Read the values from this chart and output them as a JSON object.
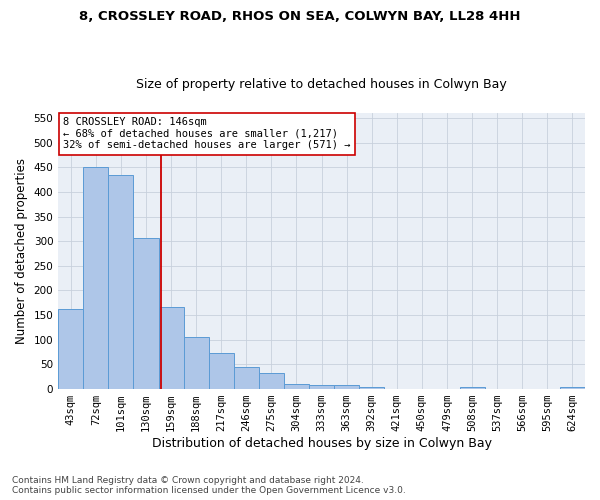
{
  "title1": "8, CROSSLEY ROAD, RHOS ON SEA, COLWYN BAY, LL28 4HH",
  "title2": "Size of property relative to detached houses in Colwyn Bay",
  "xlabel": "Distribution of detached houses by size in Colwyn Bay",
  "ylabel": "Number of detached properties",
  "bar_labels": [
    "43sqm",
    "72sqm",
    "101sqm",
    "130sqm",
    "159sqm",
    "188sqm",
    "217sqm",
    "246sqm",
    "275sqm",
    "304sqm",
    "333sqm",
    "363sqm",
    "392sqm",
    "421sqm",
    "450sqm",
    "479sqm",
    "508sqm",
    "537sqm",
    "566sqm",
    "595sqm",
    "624sqm"
  ],
  "bar_heights": [
    163,
    450,
    435,
    307,
    167,
    106,
    74,
    44,
    32,
    10,
    8,
    8,
    5,
    0,
    0,
    0,
    5,
    0,
    0,
    0,
    5
  ],
  "bar_color": "#aec6e8",
  "bar_edge_color": "#5b9bd5",
  "vline_x": 3.58,
  "vline_color": "#cc0000",
  "annotation_line1": "8 CROSSLEY ROAD: 146sqm",
  "annotation_line2": "← 68% of detached houses are smaller (1,217)",
  "annotation_line3": "32% of semi-detached houses are larger (571) →",
  "annotation_box_color": "#ffffff",
  "annotation_box_edge": "#cc0000",
  "ylim": [
    0,
    560
  ],
  "yticks": [
    0,
    50,
    100,
    150,
    200,
    250,
    300,
    350,
    400,
    450,
    500,
    550
  ],
  "grid_color": "#c8d0dc",
  "bg_color": "#eaeff6",
  "footnote": "Contains HM Land Registry data © Crown copyright and database right 2024.\nContains public sector information licensed under the Open Government Licence v3.0.",
  "title1_fontsize": 9.5,
  "title2_fontsize": 9,
  "xlabel_fontsize": 9,
  "ylabel_fontsize": 8.5,
  "tick_fontsize": 7.5,
  "annot_fontsize": 7.5,
  "footnote_fontsize": 6.5
}
